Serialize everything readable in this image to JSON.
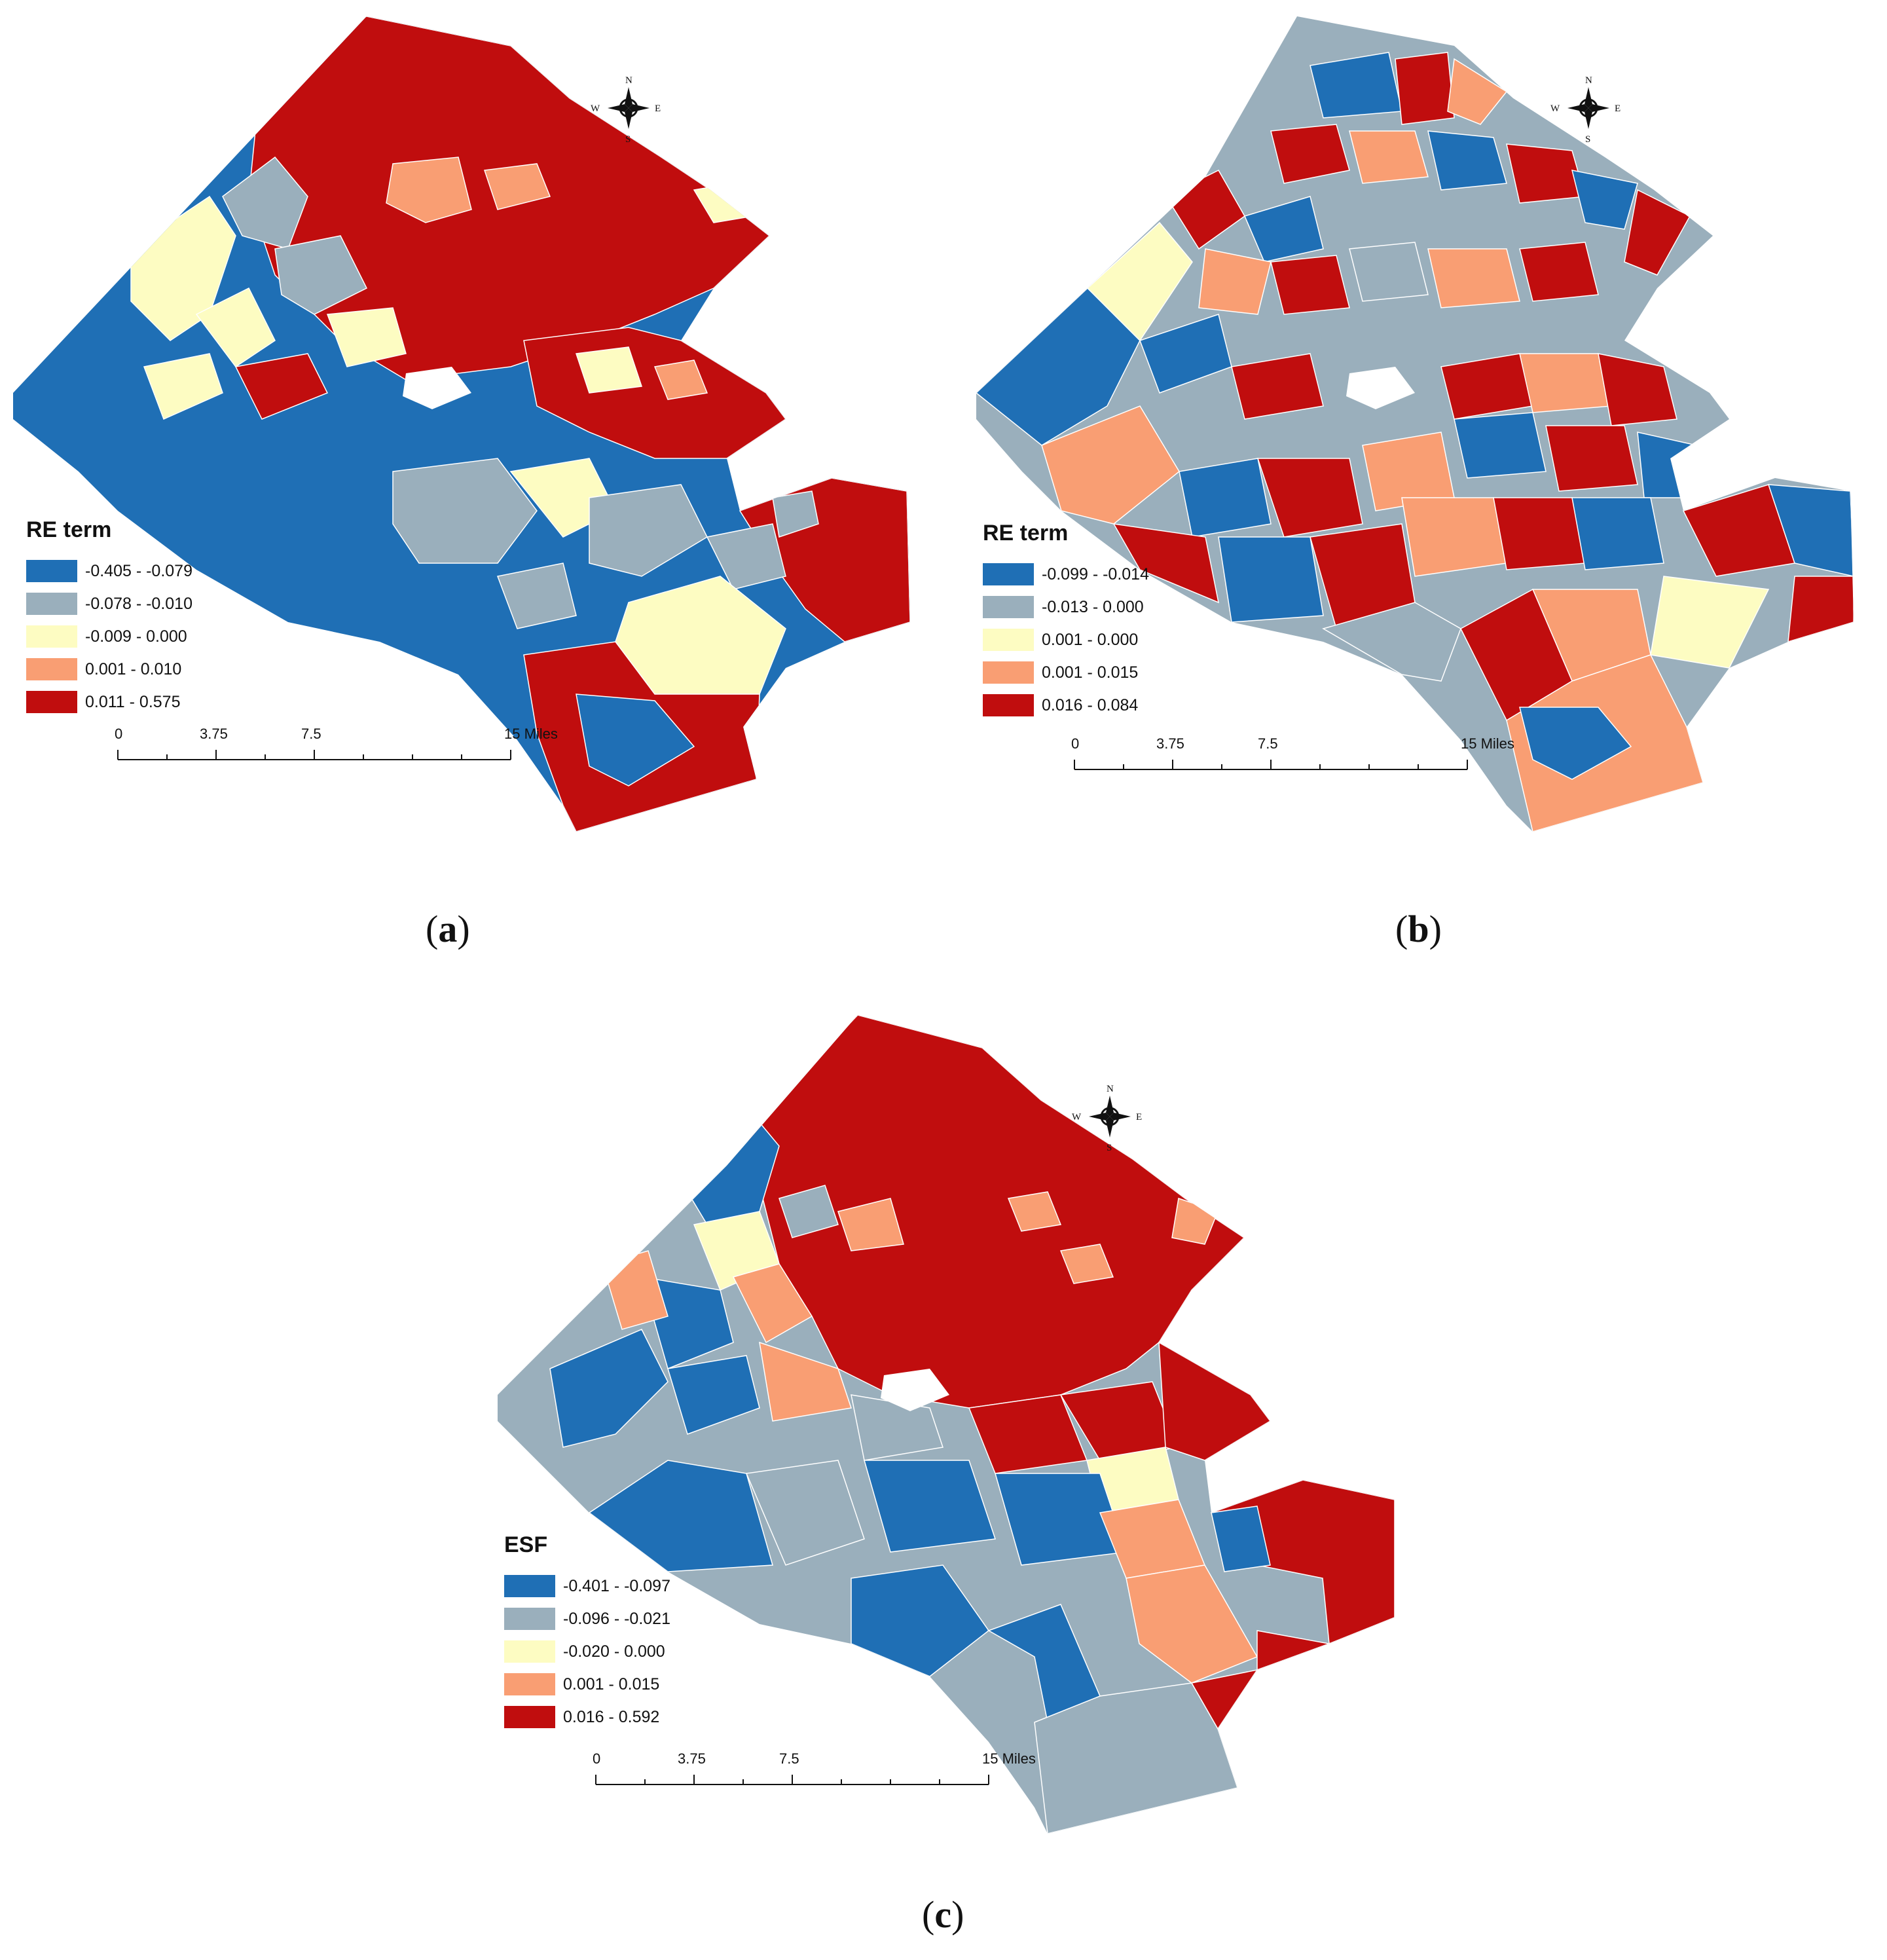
{
  "colors": {
    "class1": "#1f6fb5",
    "class2": "#9aafbc",
    "class3": "#fdfcc2",
    "class4": "#f99e73",
    "class5": "#c00d0e",
    "boundary": "#ffffff"
  },
  "compass": {
    "n": "N",
    "s": "S",
    "e": "E",
    "w": "W",
    "icon": "compass-rose-icon"
  },
  "scale": {
    "ticks": [
      "0",
      "3.75",
      "7.5",
      "15 Miles"
    ]
  },
  "panels": [
    {
      "id": "a",
      "caption_letter": "a",
      "legend_title": "RE term",
      "legend": [
        {
          "label": "-0.405 - -0.079",
          "color": "#1f6fb5"
        },
        {
          "label": "-0.078 - -0.010",
          "color": "#9aafbc"
        },
        {
          "label": "-0.009 - 0.000",
          "color": "#fdfcc2"
        },
        {
          "label": "0.001 - 0.010",
          "color": "#f99e73"
        },
        {
          "label": "0.011 - 0.575",
          "color": "#c00d0e"
        }
      ]
    },
    {
      "id": "b",
      "caption_letter": "b",
      "legend_title": "RE term",
      "legend": [
        {
          "label": "-0.099 - -0.014",
          "color": "#1f6fb5"
        },
        {
          "label": "-0.013 - 0.000",
          "color": "#9aafbc"
        },
        {
          "label": "0.001 - 0.000",
          "color": "#fdfcc2"
        },
        {
          "label": "0.001 - 0.015",
          "color": "#f99e73"
        },
        {
          "label": "0.016 - 0.084",
          "color": "#c00d0e"
        }
      ]
    },
    {
      "id": "c",
      "caption_letter": "c",
      "legend_title": "ESF",
      "legend": [
        {
          "label": "-0.401 - -0.097",
          "color": "#1f6fb5"
        },
        {
          "label": "-0.096 - -0.021",
          "color": "#9aafbc"
        },
        {
          "label": "-0.020 - 0.000",
          "color": "#fdfcc2"
        },
        {
          "label": "0.001 - 0.015",
          "color": "#f99e73"
        },
        {
          "label": "0.016 - 0.592",
          "color": "#c00d0e"
        }
      ]
    }
  ]
}
